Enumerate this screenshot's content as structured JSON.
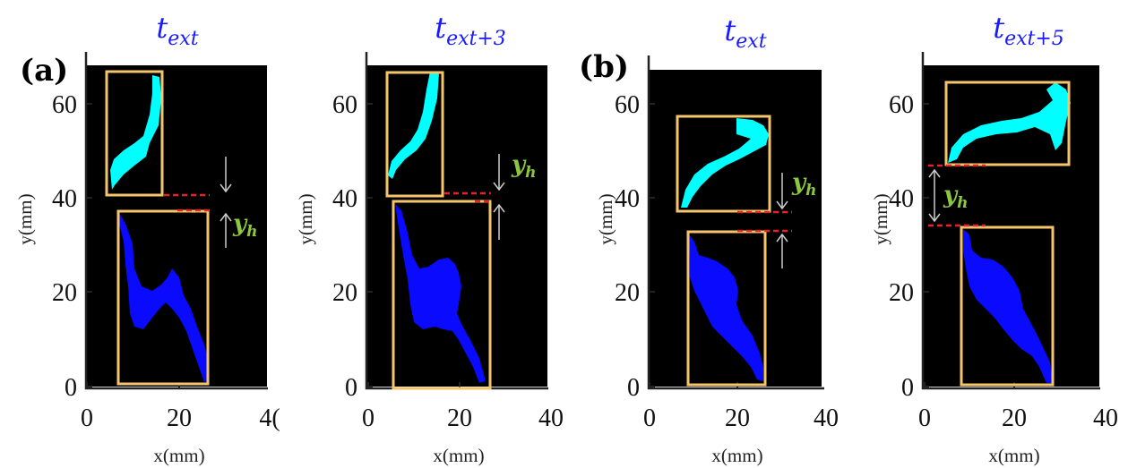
{
  "colors": {
    "title": "#1a1aff",
    "upper_blob": "#00ffff",
    "lower_blob": "#0a0aff",
    "bbox": "#f4c56a",
    "gap_line": "#e8222b",
    "yh_label": "#8cc63f",
    "arrow": "#cccccc",
    "background": "#000000"
  },
  "panel_labels": {
    "a": "(a)",
    "b": "(b)"
  },
  "panels": [
    {
      "title_main": "t",
      "title_sub": "ext",
      "x_ticks": [
        "0",
        "20",
        "4("
      ],
      "y_ticks": [
        "0",
        "20",
        "40",
        "60"
      ],
      "xlabel": "x(mm)",
      "ylabel": "y(mm)",
      "yh_label": "y",
      "yh_sub": "h"
    },
    {
      "title_main": "t",
      "title_sub": "ext+3",
      "x_ticks": [
        "0",
        "20",
        "40"
      ],
      "y_ticks": [
        "0",
        "20",
        "40",
        "60"
      ],
      "xlabel": "x(mm)",
      "ylabel": "y(mm)",
      "yh_label": "y",
      "yh_sub": "h"
    },
    {
      "title_main": "t",
      "title_sub": "ext",
      "x_ticks": [
        "0",
        "20",
        "40"
      ],
      "y_ticks": [
        "0",
        "20",
        "40",
        "60"
      ],
      "xlabel": "x(mm)",
      "ylabel": "y(mm)",
      "yh_label": "y",
      "yh_sub": "h"
    },
    {
      "title_main": "t",
      "title_sub": "ext+5",
      "x_ticks": [
        "0",
        "20",
        "40"
      ],
      "y_ticks": [
        "0",
        "20",
        "40",
        "60"
      ],
      "xlabel": "x(mm)",
      "ylabel": "y(mm)",
      "yh_label": "y",
      "yh_sub": "h"
    }
  ]
}
